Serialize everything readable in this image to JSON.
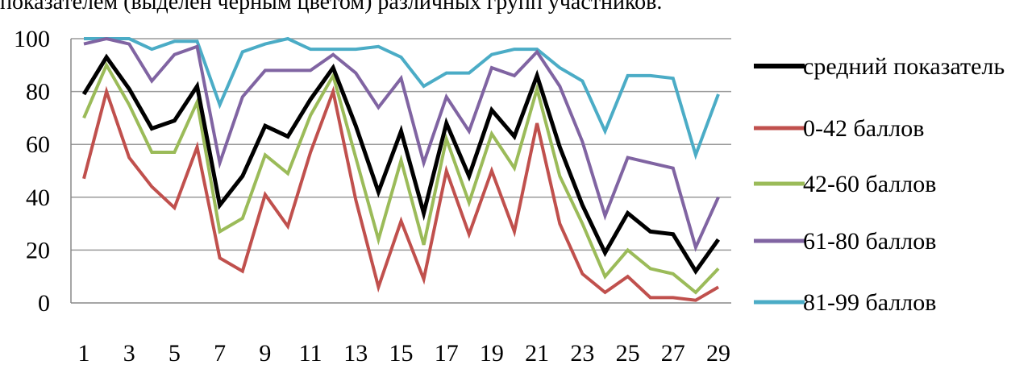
{
  "caption": "показателем (выделен черным цветом) различных групп участников.",
  "chart_data": {
    "type": "line",
    "x": [
      1,
      2,
      3,
      4,
      5,
      6,
      7,
      8,
      9,
      10,
      11,
      12,
      13,
      14,
      15,
      16,
      17,
      18,
      19,
      20,
      21,
      22,
      23,
      24,
      25,
      26,
      27,
      28,
      29
    ],
    "x_tick_labels": [
      "1",
      "3",
      "5",
      "7",
      "9",
      "11",
      "13",
      "15",
      "17",
      "19",
      "21",
      "23",
      "25",
      "27",
      "29"
    ],
    "x_tick_values": [
      1,
      3,
      5,
      7,
      9,
      11,
      13,
      15,
      17,
      19,
      21,
      23,
      25,
      27,
      29
    ],
    "ylim": [
      0,
      100
    ],
    "y_ticks": [
      0,
      20,
      40,
      60,
      80,
      100
    ],
    "grid": "horizontal",
    "legend_position": "right",
    "series": [
      {
        "name": "средний показатель",
        "color": "#000000",
        "width": 5,
        "values": [
          79,
          93,
          81,
          66,
          69,
          82,
          37,
          48,
          67,
          63,
          77,
          89,
          67,
          42,
          65,
          34,
          68,
          48,
          73,
          63,
          86,
          59,
          37,
          19,
          34,
          27,
          26,
          12,
          24
        ]
      },
      {
        "name": "0-42 баллов",
        "color": "#c0504d",
        "width": 4,
        "values": [
          47,
          80,
          55,
          44,
          36,
          59,
          17,
          12,
          41,
          29,
          57,
          80,
          39,
          6,
          31,
          9,
          50,
          26,
          50,
          27,
          68,
          30,
          11,
          4,
          10,
          2,
          2,
          1,
          6
        ]
      },
      {
        "name": "42-60 баллов",
        "color": "#9bbb59",
        "width": 4,
        "values": [
          70,
          90,
          75,
          57,
          57,
          76,
          27,
          32,
          56,
          49,
          71,
          86,
          55,
          24,
          54,
          22,
          62,
          38,
          64,
          51,
          81,
          48,
          30,
          10,
          20,
          13,
          11,
          4,
          13
        ]
      },
      {
        "name": "61-80 баллов",
        "color": "#8064a2",
        "width": 4,
        "values": [
          98,
          100,
          98,
          84,
          94,
          97,
          53,
          78,
          88,
          88,
          88,
          94,
          87,
          74,
          85,
          53,
          78,
          65,
          89,
          86,
          95,
          82,
          61,
          33,
          55,
          53,
          51,
          21,
          40
        ]
      },
      {
        "name": "81-99 баллов",
        "color": "#4bacc6",
        "width": 4,
        "values": [
          100,
          100,
          100,
          96,
          99,
          99,
          75,
          95,
          98,
          100,
          96,
          96,
          96,
          97,
          93,
          82,
          87,
          87,
          94,
          96,
          96,
          89,
          84,
          65,
          86,
          86,
          85,
          56,
          79
        ]
      }
    ]
  }
}
